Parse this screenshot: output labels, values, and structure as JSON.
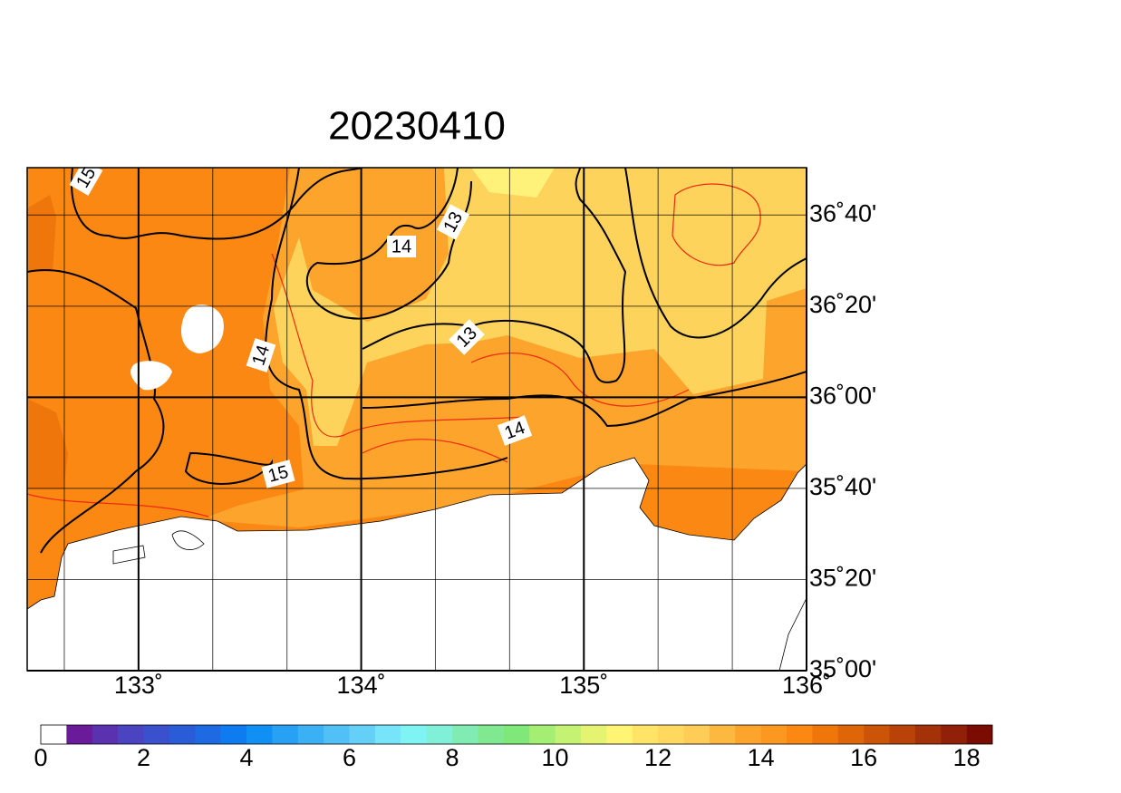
{
  "title": "20230410",
  "map": {
    "xlim": [
      132.5,
      136
    ],
    "ylim": [
      35,
      36.84
    ],
    "xticks": [
      {
        "value": 133,
        "label": "133˚"
      },
      {
        "value": 134,
        "label": "134˚"
      },
      {
        "value": 135,
        "label": "135˚"
      },
      {
        "value": 136,
        "label": "136˚"
      }
    ],
    "yticks": [
      {
        "value": 35,
        "label": "35˚00'"
      },
      {
        "value": 35.3333,
        "label": "35˚20'"
      },
      {
        "value": 35.6667,
        "label": "35˚40'"
      },
      {
        "value": 36,
        "label": "36˚00'"
      },
      {
        "value": 36.3333,
        "label": "36˚20'"
      },
      {
        "value": 36.6667,
        "label": "36˚40'"
      }
    ],
    "x_minor_grid": [
      132.6667,
      133.3333,
      133.6667,
      134.3333,
      134.6667,
      135.3333,
      135.6667
    ],
    "contour_labels": [
      15,
      14,
      13,
      13,
      14,
      14,
      15
    ]
  },
  "colorbar": {
    "lim": [
      0,
      18.5
    ],
    "ticks": [
      0,
      2,
      4,
      6,
      8,
      10,
      12,
      14,
      16,
      18
    ],
    "colors": [
      "#ffffff",
      "#6a1b9a",
      "#5a32b0",
      "#4a44c0",
      "#3a50cc",
      "#2a5cd8",
      "#1e6ae2",
      "#0e7cf0",
      "#1090f4",
      "#28a0f4",
      "#3cb0f4",
      "#50c0f6",
      "#64d0f8",
      "#78e4fa",
      "#80f4f4",
      "#80f0d8",
      "#80ecb4",
      "#80e890",
      "#80e878",
      "#a4ee74",
      "#c4f272",
      "#e4f472",
      "#fff474",
      "#ffe468",
      "#ffd860",
      "#ffcc58",
      "#fdb840",
      "#fca42c",
      "#fc9820",
      "#fa8812",
      "#ee760a",
      "#de6608",
      "#cc5408",
      "#b84208",
      "#a43208",
      "#902008",
      "#7a0c04"
    ]
  }
}
